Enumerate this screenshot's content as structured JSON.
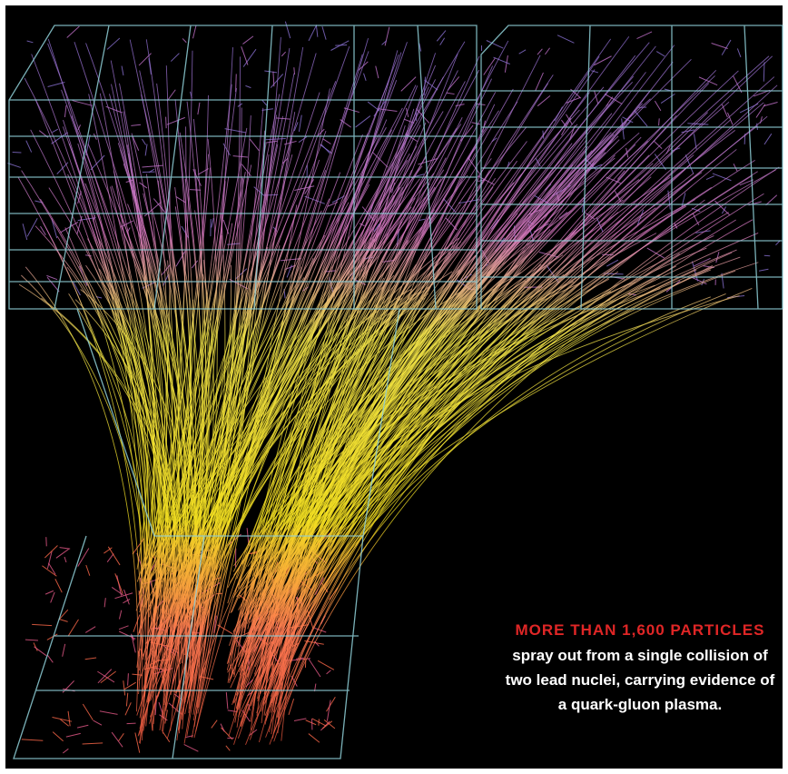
{
  "caption": {
    "heading": "MORE THAN 1,600 PARTICLES",
    "lines": [
      "spray out from a single collision of",
      "two lead nuclei, carrying evidence of",
      "a quark-gluon plasma."
    ]
  }
}
